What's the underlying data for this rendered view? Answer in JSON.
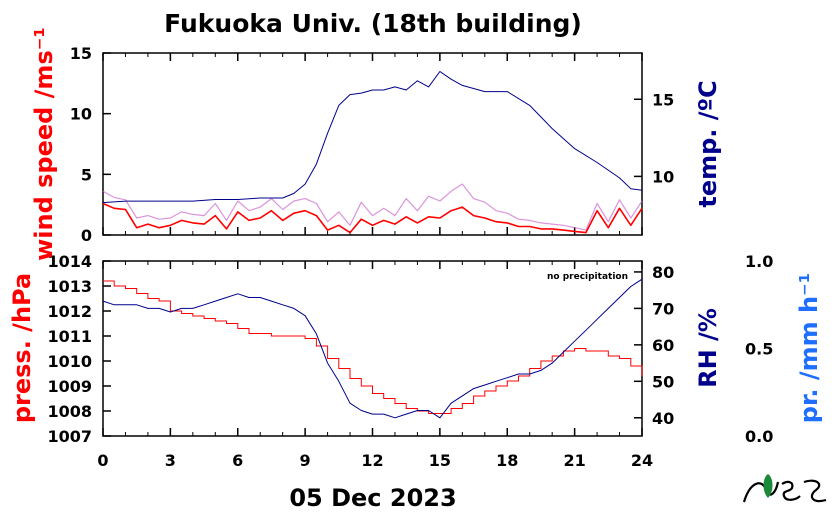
{
  "title": "Fukuoka Univ. (18th building)",
  "date_label": "05 Dec 2023",
  "logo_text": "NES",
  "note": "no precipitation",
  "colors": {
    "wind": "#ff0000",
    "wind_gust": "#cc66cc",
    "temperature": "#00008b",
    "pressure": "#ff0000",
    "rh": "#00008b",
    "precip": "#1e6fff",
    "logo_green": "#1a8a3a"
  },
  "axes": {
    "wind_label": "wind speed /ms⁻¹",
    "temp_label": "temp. /ºC",
    "press_label": "press. /hPa",
    "rh_label": "RH /%",
    "precip_label": "pr. /mm h⁻¹"
  },
  "chart_data": [
    {
      "type": "line",
      "panel": "top",
      "x_label": "hour",
      "xlim": [
        0,
        24
      ],
      "xticks": [
        0,
        3,
        6,
        9,
        12,
        15,
        18,
        21,
        24
      ],
      "xtick_labels": [
        "0",
        "3",
        "6",
        "9",
        "12",
        "15",
        "18",
        "21",
        "24"
      ],
      "left_axis": {
        "label": "wind speed /ms⁻¹",
        "ylim": [
          0,
          15
        ],
        "ticks": [
          0,
          5,
          10,
          15
        ]
      },
      "right_axis": {
        "label": "temp. /ºC",
        "ylim": [
          6.2,
          18.0
        ],
        "ticks": [
          10,
          15
        ]
      },
      "series": [
        {
          "axis": "left",
          "x": [
            0,
            0.5,
            1,
            1.5,
            2,
            2.5,
            3,
            3.5,
            4,
            4.5,
            5,
            5.5,
            6,
            6.5,
            7,
            7.5,
            8,
            8.5,
            9,
            9.5,
            10,
            10.5,
            11,
            11.5,
            12,
            12.5,
            13,
            13.5,
            14,
            14.5,
            15,
            15.5,
            16,
            16.5,
            17,
            17.5,
            18,
            18.5,
            19,
            19.5,
            20,
            20.5,
            21,
            21.5,
            22,
            22.5,
            23,
            23.5,
            24
          ],
          "y": [
            2.6,
            2.2,
            2.1,
            0.6,
            0.9,
            0.6,
            0.8,
            1.2,
            1.0,
            0.9,
            1.6,
            0.5,
            1.9,
            1.2,
            1.4,
            2.0,
            1.2,
            1.8,
            2.0,
            1.6,
            0.4,
            0.8,
            0.2,
            1.3,
            0.8,
            1.2,
            0.9,
            1.5,
            1.0,
            1.5,
            1.4,
            2.0,
            2.3,
            1.6,
            1.4,
            1.1,
            1.0,
            0.7,
            0.7,
            0.5,
            0.5,
            0.4,
            0.3,
            0.2,
            2.0,
            0.6,
            2.2,
            0.8,
            2.2
          ]
        },
        {
          "axis": "left",
          "x": [
            0,
            0.5,
            1,
            1.5,
            2,
            2.5,
            3,
            3.5,
            4,
            4.5,
            5,
            5.5,
            6,
            6.5,
            7,
            7.5,
            8,
            8.5,
            9,
            9.5,
            10,
            10.5,
            11,
            11.5,
            12,
            12.5,
            13,
            13.5,
            14,
            14.5,
            15,
            15.5,
            16,
            16.5,
            17,
            17.5,
            18,
            18.5,
            19,
            19.5,
            20,
            20.5,
            21,
            21.5,
            22,
            22.5,
            23,
            23.5,
            24
          ],
          "y": [
            3.6,
            3.1,
            2.9,
            1.4,
            1.6,
            1.3,
            1.4,
            1.9,
            1.7,
            1.6,
            2.6,
            1.2,
            2.8,
            2.0,
            2.3,
            3.0,
            2.1,
            2.8,
            3.0,
            2.6,
            1.1,
            1.9,
            0.8,
            2.7,
            1.6,
            2.2,
            1.6,
            3.0,
            2.0,
            3.2,
            2.8,
            3.6,
            4.2,
            3.0,
            2.7,
            2.0,
            1.8,
            1.3,
            1.2,
            1.0,
            0.9,
            0.8,
            0.6,
            0.4,
            2.6,
            1.1,
            2.9,
            1.4,
            2.8
          ]
        },
        {
          "axis": "right",
          "x": [
            0,
            1,
            2,
            3,
            4,
            5,
            6,
            7,
            8,
            8.5,
            9,
            9.5,
            10,
            10.5,
            11,
            11.5,
            12,
            12.5,
            13,
            13.5,
            14,
            14.5,
            15,
            15.5,
            16,
            17,
            18,
            19,
            20,
            21,
            22,
            23,
            23.5,
            24
          ],
          "y": [
            8.3,
            8.4,
            8.4,
            8.4,
            8.4,
            8.5,
            8.5,
            8.6,
            8.6,
            8.9,
            9.5,
            10.8,
            12.8,
            14.6,
            15.3,
            15.4,
            15.6,
            15.6,
            15.8,
            15.6,
            16.2,
            15.8,
            16.8,
            16.3,
            15.9,
            15.5,
            15.5,
            14.6,
            13.1,
            11.8,
            10.9,
            9.9,
            9.2,
            9.1
          ]
        }
      ]
    },
    {
      "type": "line",
      "panel": "bottom",
      "x_label": "hour",
      "xlim": [
        0,
        24
      ],
      "xticks": [
        0,
        3,
        6,
        9,
        12,
        15,
        18,
        21,
        24
      ],
      "xtick_labels": [
        "0",
        "3",
        "6",
        "9",
        "12",
        "15",
        "18",
        "21",
        "24"
      ],
      "left_axis": {
        "label": "press. /hPa",
        "ylim": [
          1007,
          1014
        ],
        "ticks": [
          1007,
          1008,
          1009,
          1010,
          1011,
          1012,
          1013,
          1014
        ]
      },
      "right_axis": {
        "label": "RH /%",
        "ylim": [
          35,
          83
        ],
        "ticks": [
          40,
          50,
          60,
          70,
          80
        ]
      },
      "far_right_axis": {
        "label": "pr. /mm h⁻¹",
        "ylim": [
          0.0,
          1.0
        ],
        "ticks": [
          0.0,
          0.5,
          1.0
        ],
        "tick_labels": [
          "0.0",
          "0.5",
          "1.0"
        ]
      },
      "series": [
        {
          "axis": "left",
          "x": [
            0,
            0.5,
            1,
            1.5,
            2,
            2.5,
            3,
            3.5,
            4,
            4.5,
            5,
            5.5,
            6,
            6.5,
            7,
            7.5,
            8,
            8.5,
            9,
            9.5,
            10,
            10.5,
            11,
            11.5,
            12,
            12.5,
            13,
            13.5,
            14,
            14.5,
            15,
            15.5,
            16,
            16.5,
            17,
            17.5,
            18,
            18.5,
            19,
            19.5,
            20,
            20.5,
            21,
            21.5,
            22,
            22.5,
            23,
            23.5,
            24
          ],
          "y": [
            1013.2,
            1013.0,
            1012.9,
            1012.7,
            1012.5,
            1012.4,
            1012.0,
            1011.9,
            1011.8,
            1011.7,
            1011.6,
            1011.5,
            1011.3,
            1011.1,
            1011.1,
            1011.0,
            1011.0,
            1011.0,
            1010.9,
            1010.6,
            1010.1,
            1009.7,
            1009.3,
            1009.0,
            1008.7,
            1008.5,
            1008.3,
            1008.1,
            1008.0,
            1007.9,
            1007.9,
            1008.1,
            1008.3,
            1008.6,
            1008.8,
            1009.0,
            1009.2,
            1009.4,
            1009.7,
            1010.0,
            1010.2,
            1010.4,
            1010.5,
            1010.4,
            1010.4,
            1010.2,
            1010.1,
            1009.8,
            1009.4
          ]
        },
        {
          "axis": "right",
          "x": [
            0,
            0.5,
            1,
            1.5,
            2,
            2.5,
            3,
            3.5,
            4,
            4.5,
            5,
            5.5,
            6,
            6.5,
            7,
            7.5,
            8,
            8.5,
            9,
            9.5,
            10,
            10.5,
            11,
            11.5,
            12,
            12.5,
            13,
            13.5,
            14,
            14.5,
            15,
            15.5,
            16,
            16.5,
            17,
            17.5,
            18,
            18.5,
            19,
            19.5,
            20,
            20.5,
            21,
            21.5,
            22,
            22.5,
            23,
            23.5,
            24
          ],
          "y": [
            72,
            71,
            71,
            71,
            70,
            70,
            69,
            70,
            70,
            71,
            72,
            73,
            74,
            73,
            73,
            72,
            71,
            70,
            68,
            63,
            55,
            50,
            44,
            42,
            41,
            41,
            40,
            41,
            42,
            42,
            40,
            44,
            46,
            48,
            49,
            50,
            51,
            52,
            52,
            53,
            55,
            58,
            61,
            64,
            67,
            70,
            73,
            76,
            78
          ]
        }
      ]
    }
  ]
}
